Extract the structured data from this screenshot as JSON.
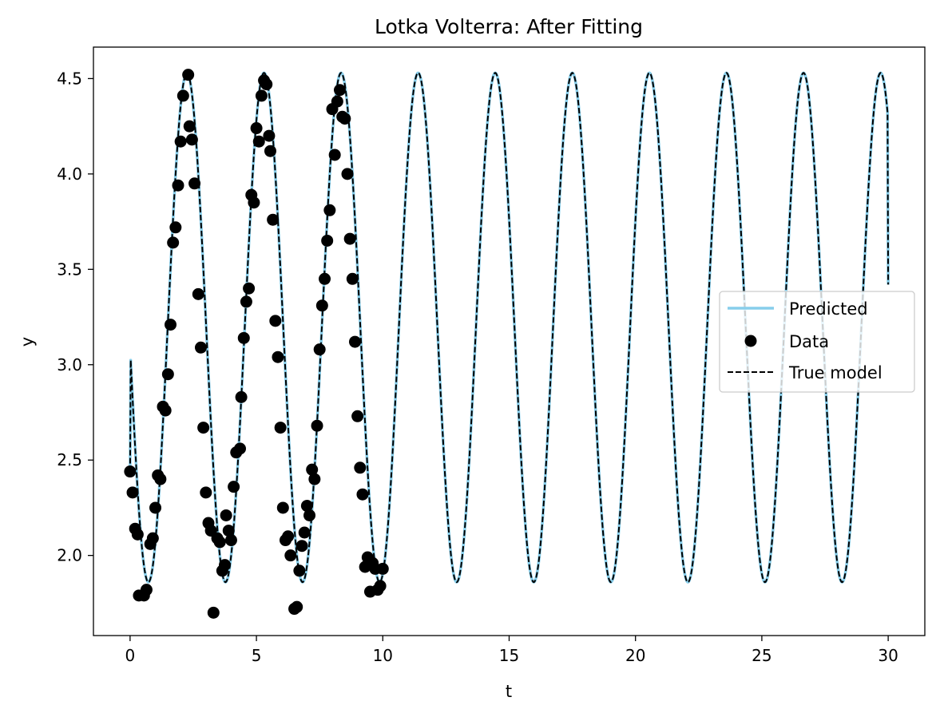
{
  "chart_data": {
    "type": "line",
    "title": "Lotka Volterra: After Fitting",
    "xlabel": "t",
    "ylabel": "y",
    "xlim": [
      -1.45,
      31.45
    ],
    "ylim": [
      1.58,
      4.665
    ],
    "xticks": [
      0,
      5,
      10,
      15,
      20,
      25,
      30
    ],
    "xtick_labels": [
      "0",
      "5",
      "10",
      "15",
      "20",
      "25",
      "30"
    ],
    "yticks": [
      2.0,
      2.5,
      3.0,
      3.5,
      4.0,
      4.5
    ],
    "ytick_labels": [
      "2.0",
      "2.5",
      "3.0",
      "3.5",
      "4.0",
      "4.5"
    ],
    "grid": false,
    "legend_position": "center-right",
    "curve": {
      "t_range": [
        0,
        30
      ],
      "minimum": 1.86,
      "maximum": 4.53,
      "period": 3.05,
      "first_peak_t": 2.25,
      "start_value": 2.44,
      "end_value": 3.42
    },
    "series": [
      {
        "name": "Predicted",
        "style": "solid-line",
        "color": "#87ceeb"
      },
      {
        "name": "Data",
        "style": "scatter",
        "color": "#000000",
        "points": [
          [
            0.0,
            2.44
          ],
          [
            0.1,
            2.33
          ],
          [
            0.2,
            2.14
          ],
          [
            0.3,
            2.11
          ],
          [
            0.35,
            1.79
          ],
          [
            0.55,
            1.79
          ],
          [
            0.65,
            1.82
          ],
          [
            0.8,
            2.06
          ],
          [
            0.9,
            2.09
          ],
          [
            1.0,
            2.25
          ],
          [
            1.1,
            2.42
          ],
          [
            1.2,
            2.4
          ],
          [
            1.3,
            2.78
          ],
          [
            1.4,
            2.76
          ],
          [
            1.5,
            2.95
          ],
          [
            1.6,
            3.21
          ],
          [
            1.7,
            3.64
          ],
          [
            1.8,
            3.72
          ],
          [
            1.9,
            3.94
          ],
          [
            2.0,
            4.17
          ],
          [
            2.1,
            4.41
          ],
          [
            2.3,
            4.52
          ],
          [
            2.35,
            4.25
          ],
          [
            2.45,
            4.18
          ],
          [
            2.55,
            3.95
          ],
          [
            2.7,
            3.37
          ],
          [
            2.8,
            3.09
          ],
          [
            2.9,
            2.67
          ],
          [
            3.0,
            2.33
          ],
          [
            3.1,
            2.17
          ],
          [
            3.2,
            2.13
          ],
          [
            3.3,
            1.7
          ],
          [
            3.45,
            2.09
          ],
          [
            3.55,
            2.07
          ],
          [
            3.65,
            1.92
          ],
          [
            3.75,
            1.95
          ],
          [
            3.8,
            2.21
          ],
          [
            3.9,
            2.13
          ],
          [
            4.0,
            2.08
          ],
          [
            4.1,
            2.36
          ],
          [
            4.2,
            2.54
          ],
          [
            4.35,
            2.56
          ],
          [
            4.4,
            2.83
          ],
          [
            4.5,
            3.14
          ],
          [
            4.6,
            3.33
          ],
          [
            4.7,
            3.4
          ],
          [
            4.8,
            3.89
          ],
          [
            4.9,
            3.85
          ],
          [
            5.0,
            4.24
          ],
          [
            5.1,
            4.17
          ],
          [
            5.2,
            4.41
          ],
          [
            5.3,
            4.49
          ],
          [
            5.4,
            4.47
          ],
          [
            5.5,
            4.2
          ],
          [
            5.55,
            4.12
          ],
          [
            5.65,
            3.76
          ],
          [
            5.75,
            3.23
          ],
          [
            5.85,
            3.04
          ],
          [
            5.95,
            2.67
          ],
          [
            6.05,
            2.25
          ],
          [
            6.15,
            2.08
          ],
          [
            6.25,
            2.1
          ],
          [
            6.35,
            2.0
          ],
          [
            6.5,
            1.72
          ],
          [
            6.6,
            1.73
          ],
          [
            6.7,
            1.92
          ],
          [
            6.8,
            2.05
          ],
          [
            6.9,
            2.12
          ],
          [
            7.0,
            2.26
          ],
          [
            7.1,
            2.21
          ],
          [
            7.2,
            2.45
          ],
          [
            7.3,
            2.4
          ],
          [
            7.4,
            2.68
          ],
          [
            7.5,
            3.08
          ],
          [
            7.6,
            3.31
          ],
          [
            7.7,
            3.45
          ],
          [
            7.8,
            3.65
          ],
          [
            7.9,
            3.81
          ],
          [
            8.0,
            4.34
          ],
          [
            8.1,
            4.1
          ],
          [
            8.2,
            4.38
          ],
          [
            8.3,
            4.44
          ],
          [
            8.4,
            4.3
          ],
          [
            8.5,
            4.29
          ],
          [
            8.6,
            4.0
          ],
          [
            8.7,
            3.66
          ],
          [
            8.8,
            3.45
          ],
          [
            8.9,
            3.12
          ],
          [
            9.0,
            2.73
          ],
          [
            9.1,
            2.46
          ],
          [
            9.2,
            2.32
          ],
          [
            9.3,
            1.94
          ],
          [
            9.4,
            1.99
          ],
          [
            9.5,
            1.81
          ],
          [
            9.6,
            1.96
          ],
          [
            9.7,
            1.93
          ],
          [
            9.8,
            1.82
          ],
          [
            9.9,
            1.84
          ],
          [
            10.0,
            1.93
          ]
        ]
      },
      {
        "name": "True model",
        "style": "dashed-line",
        "color": "#000000"
      }
    ]
  }
}
